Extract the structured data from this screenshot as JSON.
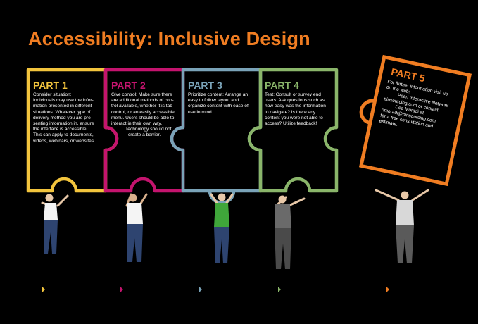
{
  "title": "Accessibility: Inclusive Design",
  "colors": {
    "background": "#000000",
    "title": "#f07d22",
    "part1": "#f2c43d",
    "part2": "#c4146e",
    "part3": "#7aa3b8",
    "part4": "#8ab56a",
    "part5": "#f07d22"
  },
  "parts": [
    {
      "heading": "PART 1",
      "lines": [
        "Consider situation:",
        "Individuals may use the infor-",
        "mation presented in different",
        "situations. Whatever type of",
        "delivery method you are pre-",
        "senting information in, ensure",
        "the interface is accessible.",
        "This can apply to documents,",
        "videos, webinars, or websites."
      ]
    },
    {
      "heading": "PART 2",
      "lines": [
        "Give control: Make sure there",
        "are additional methods of con-",
        "trol available, whether it is tab",
        "control, or an easily accessible",
        "menu. Users should be able to",
        "interact in their own way.",
        "Technology should not",
        "create a barrier."
      ]
    },
    {
      "heading": "PART 3",
      "lines": [
        "Prioritize content: Arrange an",
        "easy to follow layout and",
        "organize content with ease of",
        "use in mind."
      ]
    },
    {
      "heading": "PART 4",
      "lines": [
        "Test: Consult or survey end",
        "users. Ask questions such as",
        "how easy was the information",
        "to navigate? Is there any",
        "content you were not able to",
        "access? Utilize feedback!"
      ]
    },
    {
      "heading": "PART 5",
      "lines": [
        "For further information visit us",
        "on the web:",
        "Pearl Interactive Network",
        "pinsourcing.com or contact",
        "Dee Moradi at",
        "dmoradi@pinsourcing.com",
        "for a free consultation and",
        "estimate."
      ]
    }
  ]
}
